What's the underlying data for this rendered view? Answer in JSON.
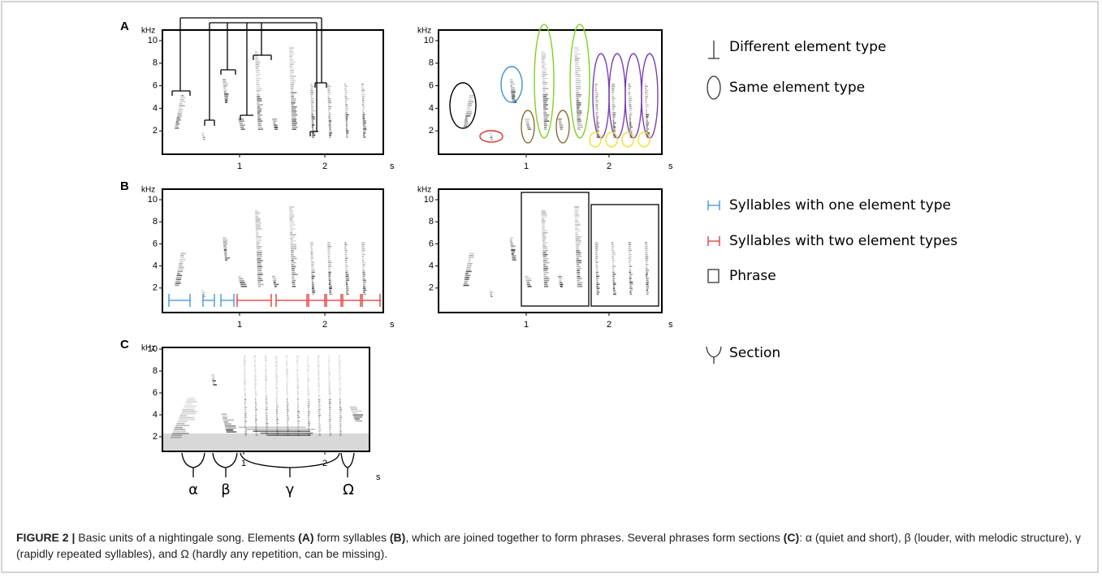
{
  "panels": [
    {
      "label": "A",
      "plots": [
        {
          "y_unit": "kHz",
          "yticks": [
            10,
            8,
            6,
            4,
            2
          ],
          "xticks": [
            1,
            2
          ],
          "x_unit": "s"
        },
        {
          "y_unit": "kHz",
          "yticks": [
            10,
            8,
            6,
            4,
            2
          ],
          "xticks": [
            1,
            2
          ],
          "x_unit": "s"
        }
      ]
    },
    {
      "label": "B",
      "plots": [
        {
          "y_unit": "kHz",
          "yticks": [
            10,
            8,
            6,
            4,
            2
          ],
          "xticks": [
            1,
            2
          ],
          "x_unit": "s"
        },
        {
          "y_unit": "kHz",
          "yticks": [
            10,
            8,
            6,
            4,
            2
          ],
          "xticks": [
            1,
            2
          ],
          "x_unit": "s"
        }
      ]
    },
    {
      "label": "C",
      "plots": [
        {
          "y_unit": "kHz",
          "yticks": [
            10,
            8,
            6,
            4,
            2
          ],
          "xticks": [
            1,
            2
          ],
          "x_unit": "s"
        }
      ]
    }
  ],
  "legend": [
    "Different element type",
    "Same element type",
    "Syllables with one element type",
    "Syllables with two element types",
    "Phrase",
    "Section"
  ],
  "section_labels": [
    "α",
    "β",
    "γ",
    "Ω"
  ],
  "caption": {
    "figure": "FIGURE 2 |",
    "parts": [
      " Basic units of a nightingale song. Elements ",
      "(A)",
      " form syllables ",
      "(B)",
      ", which are joined together to form phrases. Several phrases form sections ",
      "(C)",
      ": α (quiet and short), β (louder, with melodic structure), γ (rapidly repeated syllables), and Ω (hardly any repetition, can be missing)."
    ]
  }
}
